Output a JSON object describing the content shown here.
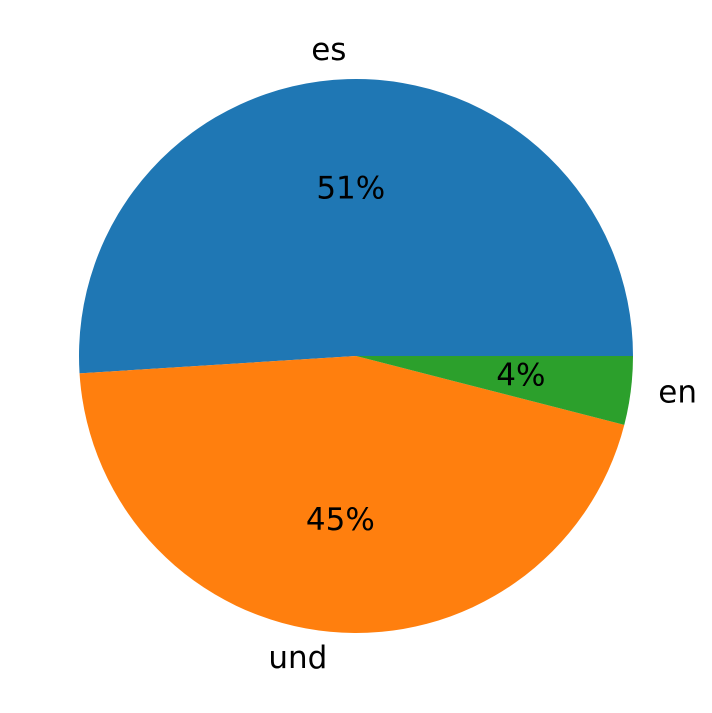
{
  "chart_data": {
    "type": "pie",
    "categories": [
      "es",
      "und",
      "en"
    ],
    "values": [
      51,
      45,
      4
    ],
    "value_labels": [
      "51%",
      "45%",
      "4%"
    ],
    "colors": [
      "#1f77b4",
      "#ff7f0e",
      "#2ca02c"
    ]
  }
}
